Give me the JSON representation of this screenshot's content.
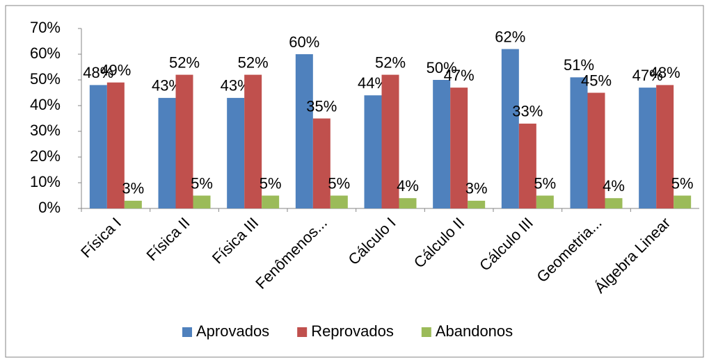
{
  "chart_data": {
    "type": "bar",
    "categories": [
      "Física I",
      "Física II",
      "Física III",
      "Fenômenos...",
      "Cálculo I",
      "Cálculo II",
      "Cálculo III",
      "Geometria...",
      "Álgebra Linear"
    ],
    "series": [
      {
        "name": "Aprovados",
        "color": "#4f81bd",
        "values": [
          48,
          43,
          43,
          60,
          44,
          50,
          62,
          51,
          47
        ],
        "value_labels": [
          "48%",
          "43%",
          "43%",
          "60%",
          "44%",
          "50%",
          "62%",
          "51%",
          "47%"
        ]
      },
      {
        "name": "Reprovados",
        "color": "#c0504d",
        "values": [
          49,
          52,
          52,
          35,
          52,
          47,
          33,
          45,
          48
        ],
        "value_labels": [
          "49%",
          "52%",
          "52%",
          "35%",
          "52%",
          "47%",
          "33%",
          "45%",
          "48%"
        ]
      },
      {
        "name": "Abandonos",
        "color": "#9bbb59",
        "values": [
          3,
          5,
          5,
          5,
          4,
          3,
          5,
          4,
          5
        ],
        "value_labels": [
          "3%",
          "5%",
          "5%",
          "5%",
          "4%",
          "3%",
          "5%",
          "4%",
          "5%"
        ]
      }
    ],
    "ylim": [
      0,
      70
    ],
    "yticks": [
      {
        "value": 0,
        "label": "0%"
      },
      {
        "value": 10,
        "label": "10%"
      },
      {
        "value": 20,
        "label": "20%"
      },
      {
        "value": 30,
        "label": "30%"
      },
      {
        "value": 40,
        "label": "40%"
      },
      {
        "value": 50,
        "label": "50%"
      },
      {
        "value": 60,
        "label": "60%"
      },
      {
        "value": 70,
        "label": "70%"
      }
    ],
    "legend": "bottom"
  }
}
